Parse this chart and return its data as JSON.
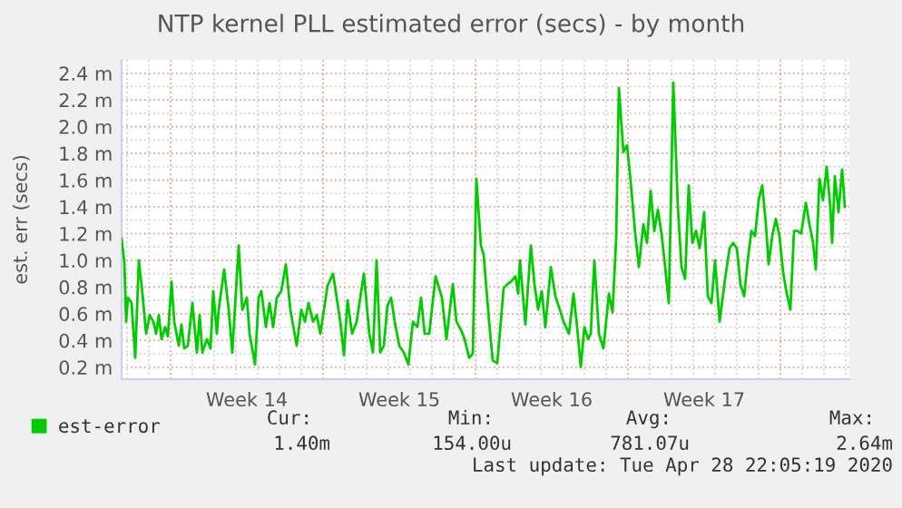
{
  "chart_data": {
    "type": "line",
    "title": "NTP kernel PLL estimated error (secs) - by month",
    "ylabel": "est. err (secs)",
    "x": [
      "2020-03-26T18:00",
      "2020-03-26T21:00",
      "2020-03-26T23:00",
      "2020-03-27T01:00",
      "2020-03-27T05:00",
      "2020-03-27T09:00",
      "2020-03-27T13:00",
      "2020-03-27T17:00",
      "2020-03-27T21:00",
      "2020-03-28T01:00",
      "2020-03-28T05:00",
      "2020-03-28T08:00",
      "2020-03-28T11:00",
      "2020-03-28T14:00",
      "2020-03-28T18:00",
      "2020-03-28T21:00",
      "2020-03-29T01:00",
      "2020-03-29T04:00",
      "2020-03-29T09:00",
      "2020-03-29T12:00",
      "2020-03-29T15:00",
      "2020-03-29T19:00",
      "2020-03-30T00:00",
      "2020-03-30T05:00",
      "2020-03-30T08:00",
      "2020-03-30T11:00",
      "2020-03-30T16:00",
      "2020-03-30T20:00",
      "2020-03-30T23:00",
      "2020-03-31T03:00",
      "2020-03-31T05:00",
      "2020-03-31T11:00",
      "2020-03-31T16:00",
      "2020-03-31T20:00",
      "2020-04-01T03:00",
      "2020-04-01T07:00",
      "2020-04-01T12:00",
      "2020-04-01T15:00",
      "2020-04-01T21:00",
      "2020-04-02T01:00",
      "2020-04-02T04:00",
      "2020-04-02T09:00",
      "2020-04-02T13:00",
      "2020-04-02T17:00",
      "2020-04-02T21:00",
      "2020-04-03T02:00",
      "2020-04-03T07:00",
      "2020-04-03T12:00",
      "2020-04-03T19:00",
      "2020-04-04T00:00",
      "2020-04-04T04:00",
      "2020-04-04T08:00",
      "2020-04-04T13:00",
      "2020-04-04T17:00",
      "2020-04-04T21:00",
      "2020-04-05T03:00",
      "2020-04-05T05:00",
      "2020-04-05T11:00",
      "2020-04-05T15:00",
      "2020-04-05T19:00",
      "2020-04-05T23:00",
      "2020-04-06T03:00",
      "2020-04-06T08:00",
      "2020-04-06T13:00",
      "2020-04-06T17:00",
      "2020-04-06T21:00",
      "2020-04-07T03:00",
      "2020-04-07T07:00",
      "2020-04-07T11:00",
      "2020-04-07T15:00",
      "2020-04-07T19:00",
      "2020-04-07T23:00",
      "2020-04-08T03:00",
      "2020-04-08T07:00",
      "2020-04-08T12:00",
      "2020-04-08T17:00",
      "2020-04-08T22:00",
      "2020-04-09T03:00",
      "2020-04-09T08:00",
      "2020-04-09T12:00",
      "2020-04-09T16:00",
      "2020-04-09T21:00",
      "2020-04-10T04:00",
      "2020-04-10T11:00",
      "2020-04-10T16:00",
      "2020-04-10T23:00",
      "2020-04-11T03:00",
      "2020-04-11T08:00",
      "2020-04-11T12:00",
      "2020-04-11T17:00",
      "2020-04-11T21:00",
      "2020-04-12T01:00",
      "2020-04-12T06:00",
      "2020-04-12T09:00",
      "2020-04-12T15:00",
      "2020-04-12T19:00",
      "2020-04-13T00:00",
      "2020-04-13T07:00",
      "2020-04-13T11:00",
      "2020-04-13T15:00",
      "2020-04-13T20:00",
      "2020-04-13T23:00",
      "2020-04-14T01:00",
      "2020-04-14T07:00",
      "2020-04-14T13:00",
      "2020-04-14T17:00",
      "2020-04-14T21:00",
      "2020-04-15T01:00",
      "2020-04-15T05:00",
      "2020-04-15T11:00",
      "2020-04-15T16:00",
      "2020-04-15T21:00",
      "2020-04-16T01:00",
      "2020-04-16T07:00",
      "2020-04-16T12:00",
      "2020-04-16T16:00",
      "2020-04-16T20:00",
      "2020-04-17T00:00",
      "2020-04-17T04:00",
      "2020-04-17T07:00",
      "2020-04-17T11:00",
      "2020-04-17T16:00",
      "2020-04-17T21:00",
      "2020-04-18T03:00",
      "2020-04-18T07:00",
      "2020-04-18T11:00",
      "2020-04-18T14:00",
      "2020-04-18T19:00",
      "2020-04-18T23:00",
      "2020-04-19T03:00",
      "2020-04-19T08:00",
      "2020-04-19T12:00",
      "2020-04-19T17:00",
      "2020-04-19T21:00",
      "2020-04-20T01:00",
      "2020-04-20T05:00",
      "2020-04-20T09:00",
      "2020-04-20T13:00",
      "2020-04-20T17:00",
      "2020-04-20T21:00",
      "2020-04-21T02:00",
      "2020-04-21T07:00",
      "2020-04-21T11:00",
      "2020-04-21T15:00",
      "2020-04-21T19:00",
      "2020-04-21T23:00",
      "2020-04-22T03:00",
      "2020-04-22T07:00",
      "2020-04-22T12:00",
      "2020-04-22T16:00",
      "2020-04-22T20:00",
      "2020-04-23T00:00",
      "2020-04-23T05:00",
      "2020-04-23T11:00",
      "2020-04-23T16:00",
      "2020-04-23T20:00",
      "2020-04-24T00:00",
      "2020-04-24T04:00",
      "2020-04-24T08:00",
      "2020-04-24T12:00",
      "2020-04-24T16:00",
      "2020-04-24T20:00",
      "2020-04-25T00:00",
      "2020-04-25T04:00",
      "2020-04-25T08:00",
      "2020-04-25T11:00",
      "2020-04-25T15:00",
      "2020-04-25T19:00",
      "2020-04-25T23:00",
      "2020-04-26T03:00",
      "2020-04-26T07:00",
      "2020-04-26T11:00",
      "2020-04-26T15:00",
      "2020-04-26T19:00",
      "2020-04-26T23:00",
      "2020-04-27T04:00",
      "2020-04-27T08:00",
      "2020-04-27T12:00",
      "2020-04-27T15:00",
      "2020-04-27T19:00",
      "2020-04-27T23:00",
      "2020-04-28T03:00",
      "2020-04-28T07:00",
      "2020-04-28T09:00",
      "2020-04-28T12:00",
      "2020-04-28T16:00",
      "2020-04-28T20:00",
      "2020-04-28T23:00"
    ],
    "series": [
      {
        "name": "est-error",
        "color": "#00cc00",
        "values": [
          1.16,
          0.99,
          0.54,
          0.72,
          0.68,
          0.27,
          1.0,
          0.75,
          0.45,
          0.59,
          0.54,
          0.45,
          0.59,
          0.41,
          0.5,
          0.43,
          0.84,
          0.54,
          0.36,
          0.52,
          0.34,
          0.36,
          0.68,
          0.31,
          0.59,
          0.31,
          0.41,
          0.34,
          0.77,
          0.45,
          0.63,
          0.93,
          0.63,
          0.31,
          1.11,
          0.63,
          0.72,
          0.45,
          0.22,
          0.72,
          0.77,
          0.5,
          0.68,
          0.5,
          0.72,
          0.77,
          0.97,
          0.63,
          0.36,
          0.63,
          0.54,
          0.68,
          0.54,
          0.59,
          0.45,
          0.72,
          0.81,
          0.9,
          0.72,
          0.54,
          0.29,
          0.7,
          0.45,
          0.54,
          0.72,
          0.9,
          0.45,
          0.31,
          1.0,
          0.31,
          0.36,
          0.66,
          0.72,
          0.54,
          0.36,
          0.31,
          0.22,
          0.54,
          0.5,
          0.72,
          0.45,
          0.45,
          0.88,
          0.72,
          0.41,
          0.82,
          0.54,
          0.48,
          0.41,
          0.27,
          0.3,
          1.61,
          1.11,
          1.04,
          0.54,
          0.25,
          0.23,
          0.79,
          0.82,
          0.84,
          0.88,
          0.75,
          1.0,
          0.52,
          1.11,
          0.82,
          0.63,
          0.77,
          0.5,
          0.95,
          0.73,
          0.63,
          0.54,
          0.45,
          0.75,
          0.5,
          0.2,
          0.5,
          0.41,
          0.45,
          1.0,
          0.45,
          0.34,
          0.75,
          0.61,
          1.16,
          2.29,
          1.81,
          1.86,
          1.59,
          1.2,
          0.95,
          1.27,
          1.13,
          1.52,
          1.22,
          1.38,
          1.2,
          0.95,
          0.68,
          2.33,
          1.4,
          0.95,
          0.86,
          1.56,
          1.13,
          1.22,
          1.09,
          1.36,
          0.73,
          0.68,
          1.0,
          0.54,
          0.86,
          1.09,
          1.13,
          1.09,
          0.82,
          0.73,
          1.0,
          1.22,
          1.18,
          1.45,
          1.56,
          1.27,
          0.97,
          1.18,
          1.31,
          1.18,
          0.91,
          0.75,
          0.63,
          1.22,
          1.22,
          1.2,
          1.43,
          1.27,
          1.13,
          0.93,
          1.61,
          1.45,
          1.7,
          1.4,
          1.13,
          1.63,
          1.36,
          1.68,
          1.4
        ]
      }
    ],
    "xlim": [
      "2020-03-26T18:00",
      "2020-04-29T04:00"
    ],
    "xticks": [
      {
        "value": "2020-03-29T00:00",
        "label": null
      },
      {
        "value": "2020-04-01T12:00",
        "label": "Week 14"
      },
      {
        "value": "2020-04-05T00:00",
        "label": null
      },
      {
        "value": "2020-04-08T12:00",
        "label": "Week 15"
      },
      {
        "value": "2020-04-12T00:00",
        "label": null
      },
      {
        "value": "2020-04-15T12:00",
        "label": "Week 16"
      },
      {
        "value": "2020-04-19T00:00",
        "label": null
      },
      {
        "value": "2020-04-22T12:00",
        "label": "Week 17"
      },
      {
        "value": "2020-04-26T00:00",
        "label": null
      }
    ],
    "ylim": [
      0.11,
      2.5
    ],
    "yticks": [
      {
        "value": 0.2,
        "label": "0.2 m"
      },
      {
        "value": 0.4,
        "label": "0.4 m"
      },
      {
        "value": 0.6,
        "label": "0.6 m"
      },
      {
        "value": 0.8,
        "label": "0.8 m"
      },
      {
        "value": 1.0,
        "label": "1.0 m"
      },
      {
        "value": 1.2,
        "label": "1.2 m"
      },
      {
        "value": 1.4,
        "label": "1.4 m"
      },
      {
        "value": 1.6,
        "label": "1.6 m"
      },
      {
        "value": 1.8,
        "label": "1.8 m"
      },
      {
        "value": 2.0,
        "label": "2.0 m"
      },
      {
        "value": 2.2,
        "label": "2.2 m"
      },
      {
        "value": 2.4,
        "label": "2.4 m"
      }
    ],
    "grid": true,
    "legend": "bottom left",
    "marker": "none",
    "line_style": "solid",
    "annotations": [
      "Cur:",
      "Min:",
      "Avg:",
      "Max:",
      "1.40m",
      "154.00u",
      "781.07u",
      "2.64m",
      "Last update: Tue Apr 28 22:05:19 2020"
    ]
  }
}
